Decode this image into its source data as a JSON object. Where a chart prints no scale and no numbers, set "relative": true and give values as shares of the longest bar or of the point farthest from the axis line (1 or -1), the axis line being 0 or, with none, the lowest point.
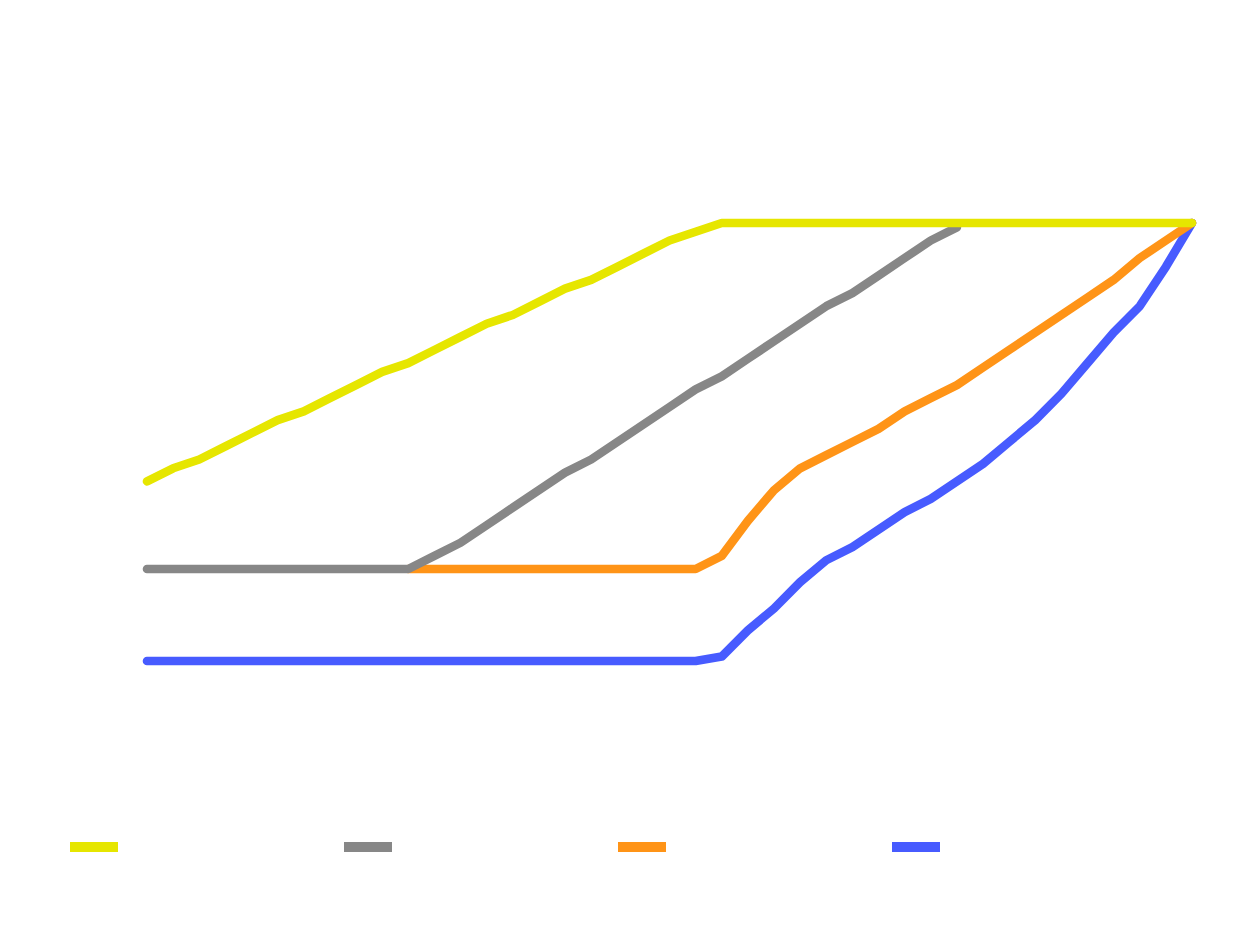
{
  "chart_data": {
    "type": "line",
    "relative": true,
    "line_style": "solid",
    "categories": [
      null,
      null,
      null,
      null,
      null,
      null,
      null,
      null,
      null,
      null,
      null,
      null,
      null,
      null,
      null,
      null,
      null,
      null,
      null,
      null,
      null,
      null,
      null,
      null,
      null,
      null,
      null,
      null,
      null,
      null,
      null,
      null,
      null,
      null,
      null,
      null,
      null,
      null,
      null,
      null,
      null
    ],
    "series": [
      {
        "color": "#e6e600",
        "values": [
          0.41,
          0.44,
          0.46,
          0.49,
          0.52,
          0.55,
          0.57,
          0.6,
          0.63,
          0.66,
          0.68,
          0.71,
          0.74,
          0.77,
          0.79,
          0.82,
          0.85,
          0.87,
          0.9,
          0.93,
          0.96,
          0.98,
          1,
          1,
          1,
          1,
          1,
          1,
          1,
          1,
          1,
          1,
          1,
          1,
          1,
          1,
          1,
          1,
          1,
          1,
          1
        ]
      },
      {
        "color": "#878787",
        "values": [
          0.21,
          0.21,
          0.21,
          0.21,
          0.21,
          0.21,
          0.21,
          0.21,
          0.21,
          0.21,
          0.21,
          0.24,
          0.27,
          0.31,
          0.35,
          0.39,
          0.43,
          0.46,
          0.5,
          0.54,
          0.58,
          0.62,
          0.65,
          0.69,
          0.73,
          0.77,
          0.81,
          0.84,
          0.88,
          0.92,
          0.96,
          0.99,
          null,
          null,
          null,
          null,
          null,
          null,
          null,
          null,
          null
        ]
      },
      {
        "color": "#ff9417",
        "values": [
          null,
          null,
          null,
          null,
          null,
          null,
          null,
          null,
          null,
          null,
          0.21,
          0.21,
          0.21,
          0.21,
          0.21,
          0.21,
          0.21,
          0.21,
          0.21,
          0.21,
          0.21,
          0.21,
          0.24,
          0.32,
          0.39,
          0.44,
          0.47,
          0.5,
          0.53,
          0.57,
          0.6,
          0.63,
          0.67,
          0.71,
          0.75,
          0.79,
          0.83,
          0.87,
          0.92,
          0.96,
          1
        ]
      },
      {
        "color": "#475bff",
        "values": [
          0,
          0,
          0,
          0,
          0,
          0,
          0,
          0,
          0,
          0,
          0,
          0,
          0,
          0,
          0,
          0,
          0,
          0,
          0,
          0,
          0,
          0,
          0.01,
          0.07,
          0.12,
          0.18,
          0.23,
          0.26,
          0.3,
          0.34,
          0.37,
          0.41,
          0.45,
          0.5,
          0.55,
          0.61,
          0.68,
          0.75,
          0.81,
          0.9,
          1
        ]
      }
    ]
  }
}
